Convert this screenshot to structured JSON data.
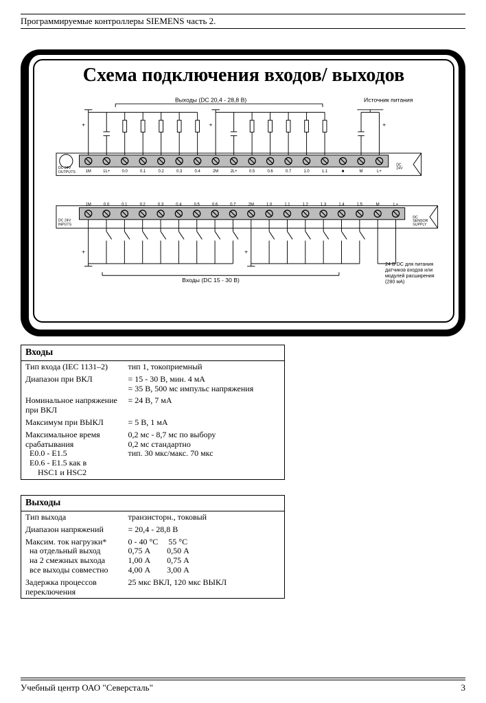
{
  "header": {
    "title": "Программируемые контроллеры SIEMENS часть 2."
  },
  "footer": {
    "org": "Учебный центр ОАО \"Северсталь\"",
    "page": "3"
  },
  "diagram": {
    "title": "Схема подключения входов/ выходов",
    "outputs_label": "Выходы (DC 20,4 - 28,8 В)",
    "power_source_label": "Источник питания",
    "inputs_label": "Входы (DC 15 - 30 В)",
    "note_24v": "24 В DC для питания датчиков входов или модулей расширения (280 мA)",
    "top_left_label": "DC 24V\nOUTPUTS",
    "top_right_label": "DC\n24V",
    "bot_left_label": "DC 24V\nINPUTS",
    "bot_right_label": "DC\nSENSOR\nSUPPLY",
    "top_terminals": [
      "1M",
      "1L+",
      "0.0",
      "0.1",
      "0.2",
      "0.3",
      "0.4",
      "2M",
      "2L+",
      "0.5",
      "0.6",
      "0.7",
      "1.0",
      "1.1",
      "■",
      "M",
      "L+"
    ],
    "bot_terminals": [
      "1M",
      "0.0",
      "0.1",
      "0.2",
      "0.3",
      "0.4",
      "0.5",
      "0.6",
      "0.7",
      "2M",
      "1.0",
      "1.1",
      "1.2",
      "1.3",
      "1.4",
      "1.5",
      "M",
      "L+"
    ],
    "colors": {
      "block_fill": "#bcbcbc",
      "stroke": "#000000",
      "bg": "#ffffff"
    }
  },
  "inputs_table": {
    "header": "Входы",
    "rows": [
      {
        "label": "Тип входа (IEC 1131–2)",
        "value": "тип 1, токоприемный"
      },
      {
        "label": "Диапазон при ВКЛ",
        "value": "= 15 - 30 В, мин. 4 мА\n= 35 В, 500 мс импульс напряжения"
      },
      {
        "label": "Номинальное напряжение при ВКЛ",
        "value": "= 24 В, 7 мА"
      },
      {
        "label": "Максимум при ВЫКЛ",
        "value": "= 5 В, 1 мА"
      },
      {
        "label": "Максимальное время срабатывания\n  E0.0 - E1.5\n  E0.6 - E1.5 как в\n      HSC1 и HSC2",
        "value": "0,2 мс - 8,7 мс по выбору\n0,2 мс стандартно\nтип. 30 мкс/макс. 70 мкс"
      }
    ]
  },
  "outputs_table": {
    "header": "Выходы",
    "rows": [
      {
        "label": "Тип выхода",
        "value": "транзисторн., токовый"
      },
      {
        "label": "Диапазон напряжений",
        "value": "= 20,4 - 28,8 В"
      },
      {
        "label": "Максим. ток нагрузки*\n  на отдельный выход\n  на 2 смежных выхода\n  все выходы совместно",
        "value": "0 - 40 °C     55 °C\n0,75 А        0,50 А\n1,00 А        0,75 А\n4,00 А        3,00 А"
      },
      {
        "label": "Задержка процессов переключения",
        "value": "25 мкс ВКЛ, 120 мкс ВЫКЛ"
      }
    ]
  }
}
